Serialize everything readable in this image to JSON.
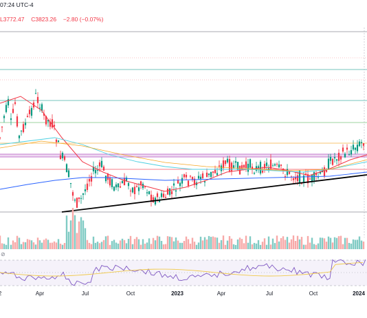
{
  "header": {
    "time_text": "07:24 UTC-4",
    "ohlc_low": "L3772.47",
    "ohlc_close": "C3823.26",
    "change": "−2.80 (−0.07%)"
  },
  "x_axis": {
    "labels": [
      {
        "text": "2",
        "bold": false
      },
      {
        "text": "Apr",
        "bold": false
      },
      {
        "text": "Jul",
        "bold": false
      },
      {
        "text": "Oct",
        "bold": false
      },
      {
        "text": "2023",
        "bold": true
      },
      {
        "text": "Apr",
        "bold": false
      },
      {
        "text": "Jul",
        "bold": false
      },
      {
        "text": "Oct",
        "bold": false
      },
      {
        "text": "2024",
        "bold": true
      }
    ]
  },
  "rsi_pane": {
    "icon": "⊘"
  },
  "colors": {
    "up": "#089981",
    "down": "#f23645",
    "trendline": "#000000",
    "ma_red": "#f23645",
    "ma_blue": "#2962ff",
    "ma_cyan": "#4dd0e1",
    "ma_orange": "#f5a623",
    "rsi_line": "#7e57c2",
    "rsi_ma": "#f0c94a"
  }
}
